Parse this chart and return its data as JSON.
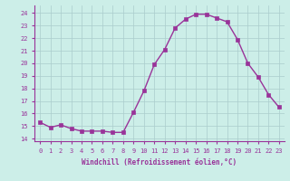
{
  "x": [
    0,
    1,
    2,
    3,
    4,
    5,
    6,
    7,
    8,
    9,
    10,
    11,
    12,
    13,
    14,
    15,
    16,
    17,
    18,
    19,
    20,
    21,
    22,
    23
  ],
  "y": [
    15.3,
    14.9,
    15.1,
    14.8,
    14.6,
    14.6,
    14.6,
    14.5,
    14.5,
    16.1,
    17.8,
    19.9,
    21.1,
    22.8,
    23.5,
    23.9,
    23.9,
    23.6,
    23.3,
    21.9,
    20.0,
    18.9,
    17.5,
    16.5
  ],
  "line_color": "#993399",
  "marker": "s",
  "markersize": 2.5,
  "bg_color": "#cceee8",
  "grid_color": "#aacccc",
  "xlabel": "Windchill (Refroidissement éolien,°C)",
  "ylabel_ticks": [
    14,
    15,
    16,
    17,
    18,
    19,
    20,
    21,
    22,
    23,
    24
  ],
  "ylim": [
    13.8,
    24.6
  ],
  "xlim": [
    -0.5,
    23.5
  ],
  "tick_color": "#993399",
  "label_color": "#993399",
  "font_family": "monospace",
  "spine_color": "#993399"
}
